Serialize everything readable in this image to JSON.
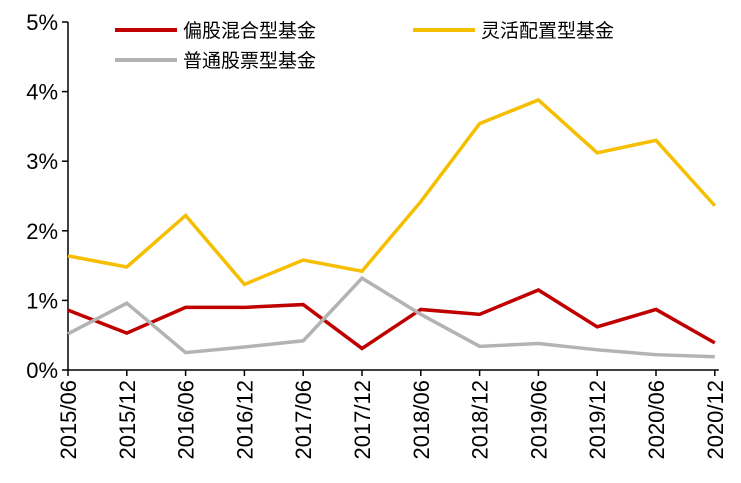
{
  "chart_data": {
    "type": "line",
    "categories": [
      "2015/06",
      "2015/12",
      "2016/06",
      "2016/12",
      "2017/06",
      "2017/12",
      "2018/06",
      "2018/12",
      "2019/06",
      "2019/12",
      "2020/06",
      "2020/12"
    ],
    "y_ticks": [
      "0%",
      "1%",
      "2%",
      "3%",
      "4%",
      "5%"
    ],
    "ylim": [
      0,
      5
    ],
    "grid": false,
    "legend_position": "top",
    "series": [
      {
        "name": "偏股混合型基金",
        "color": "#c00000",
        "values": [
          0.86,
          0.53,
          0.9,
          0.9,
          0.94,
          0.31,
          0.87,
          0.8,
          1.15,
          0.62,
          0.87,
          0.39
        ]
      },
      {
        "name": "灵活配置型基金",
        "color": "#f5bf00",
        "values": [
          1.64,
          1.48,
          2.22,
          1.23,
          1.58,
          1.42,
          2.42,
          3.54,
          3.88,
          3.12,
          3.3,
          2.36
        ]
      },
      {
        "name": "普通股票型基金",
        "color": "#b3b3b3",
        "values": [
          0.52,
          0.96,
          0.25,
          0.33,
          0.42,
          1.32,
          0.8,
          0.34,
          0.38,
          0.29,
          0.22,
          0.19
        ]
      }
    ]
  }
}
